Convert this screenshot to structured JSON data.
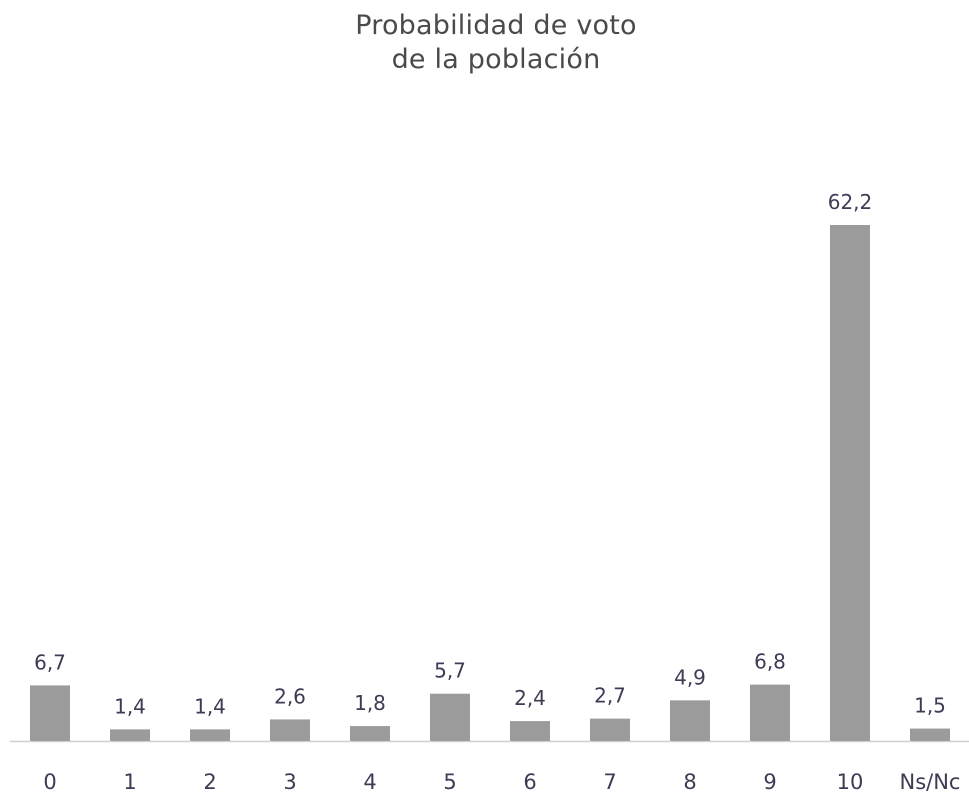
{
  "chart_data": {
    "type": "bar",
    "title": [
      "Probabilidad de voto",
      "de la población"
    ],
    "categories": [
      "0",
      "1",
      "2",
      "3",
      "4",
      "5",
      "6",
      "7",
      "8",
      "9",
      "10",
      "Ns/Nc"
    ],
    "values": [
      6.7,
      1.4,
      1.4,
      2.6,
      1.8,
      5.7,
      2.4,
      2.7,
      4.9,
      6.8,
      62.2,
      1.5
    ],
    "value_labels": [
      "6,7",
      "1,4",
      "1,4",
      "2,6",
      "1,8",
      "5,7",
      "2,4",
      "2,7",
      "4,9",
      "6,8",
      "62,2",
      "1,5"
    ],
    "xlabel": "",
    "ylabel": "",
    "ylim": [
      0,
      62.2
    ],
    "grid": false,
    "legend": "none",
    "colors": {
      "bar": "#9b9b9b",
      "axis": "#cfcfcf",
      "text": "#3c3c54",
      "title": "#4a4a4a"
    }
  }
}
